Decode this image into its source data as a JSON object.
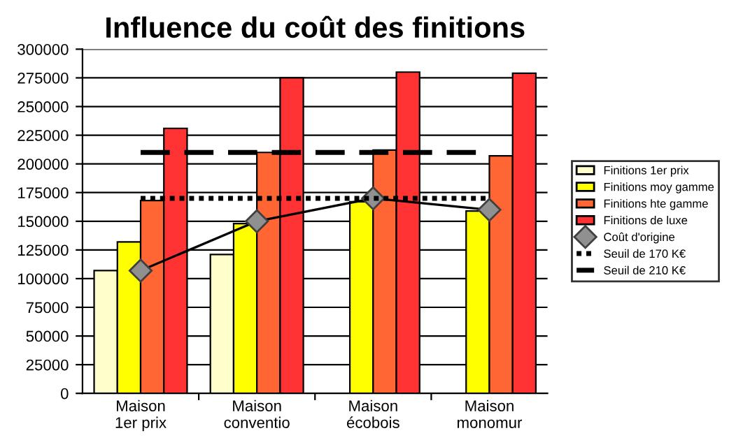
{
  "chart_data": {
    "type": "bar",
    "title": "Influence du coût des finitions",
    "categories": [
      "Maison 1er prix",
      "Maison conventio",
      "Maison écobois",
      "Maison monomur"
    ],
    "series": [
      {
        "name": "Finitions 1er prix",
        "color": "#ffffcc",
        "values": [
          107000,
          121000,
          null,
          null
        ]
      },
      {
        "name": "Finitions moy gamme",
        "color": "#ffff00",
        "values": [
          132000,
          148000,
          167000,
          159000
        ]
      },
      {
        "name": "Finitions hte gamme",
        "color": "#ff6633",
        "values": [
          168000,
          210000,
          212000,
          207000
        ]
      },
      {
        "name": "Finitions de luxe",
        "color": "#ff3333",
        "values": [
          231000,
          275000,
          280000,
          279000
        ]
      },
      {
        "name": "Coût d'origine",
        "type": "line",
        "color": "#000000",
        "marker": "diamond",
        "line_style": "solid",
        "values": [
          107000,
          150000,
          170000,
          160000
        ]
      },
      {
        "name": "Seuil de 170 K€",
        "type": "line",
        "color": "#000000",
        "marker": "none",
        "line_style": "dotted",
        "values": [
          170000,
          170000,
          170000,
          170000
        ]
      },
      {
        "name": "Seuil de 210 K€",
        "type": "line",
        "color": "#000000",
        "marker": "none",
        "line_style": "dashed",
        "values": [
          210000,
          210000,
          210000,
          210000
        ]
      }
    ],
    "ylim": [
      0,
      300000
    ],
    "yticks": [
      0,
      25000,
      50000,
      75000,
      100000,
      125000,
      150000,
      175000,
      200000,
      225000,
      250000,
      275000,
      300000
    ],
    "grid": "y",
    "legend": "right"
  }
}
